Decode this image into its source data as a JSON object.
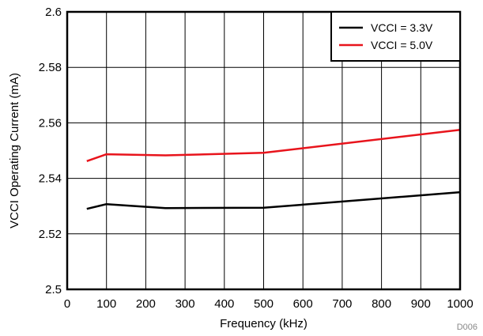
{
  "chart_data": {
    "type": "line",
    "xlabel": "Frequency (kHz)",
    "ylabel": "VCCI Operating Current (mA)",
    "xlim": [
      0,
      1000
    ],
    "ylim": [
      2.5,
      2.6
    ],
    "x_ticks": [
      0,
      100,
      200,
      300,
      400,
      500,
      600,
      700,
      800,
      900,
      1000
    ],
    "y_ticks": [
      2.5,
      2.52,
      2.54,
      2.56,
      2.58,
      2.6
    ],
    "y_tick_labels": [
      "2.5",
      "2.52",
      "2.54",
      "2.56",
      "2.58",
      "2.6"
    ],
    "grid": true,
    "legend_position": "top-right",
    "series": [
      {
        "name": "VCCI = 3.3V",
        "color": "#000000",
        "x": [
          50,
          100,
          250,
          500,
          1000
        ],
        "y": [
          2.529,
          2.5307,
          2.5293,
          2.5294,
          2.535
        ]
      },
      {
        "name": "VCCI = 5.0V",
        "color": "#e8141c",
        "x": [
          50,
          100,
          250,
          500,
          1000
        ],
        "y": [
          2.5462,
          2.5487,
          2.5483,
          2.5492,
          2.5575
        ]
      }
    ],
    "footnote": "D006"
  }
}
